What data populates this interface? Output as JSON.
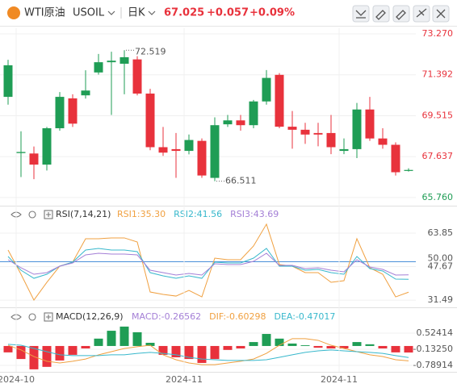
{
  "header": {
    "symbol": "WTI原油",
    "code": "USOIL",
    "period": "日K",
    "price": "67.025",
    "change": "+0.057",
    "change_pct": "+0.09%"
  },
  "chart_data": [
    {
      "type": "candlestick",
      "up_color": "#1f9d55",
      "down_color": "#e8323c",
      "open": [
        70.38,
        67.8,
        67.78,
        67.27,
        68.94,
        70.31,
        70.45,
        71.5,
        71.97,
        71.9,
        72.1,
        70.53,
        68.07,
        67.98,
        67.9,
        68.36,
        66.66,
        69.12,
        69.3,
        69.08,
        70.17,
        71.39,
        69.01,
        68.87,
        68.72,
        68.72,
        67.9,
        67.98,
        69.8,
        68.47,
        68.18,
        66.98
      ],
      "high": [
        72.08,
        68.8,
        68.1,
        69.0,
        70.6,
        70.5,
        71.6,
        72.35,
        72.45,
        72.519,
        72.25,
        70.75,
        69.0,
        68.72,
        68.65,
        68.47,
        69.44,
        69.55,
        69.55,
        70.24,
        71.61,
        71.47,
        69.73,
        69.19,
        69.19,
        69.55,
        68.47,
        70.1,
        70.38,
        68.94,
        68.29,
        67.1
      ],
      "low": [
        70.02,
        66.7,
        66.6,
        67.0,
        68.83,
        69.0,
        70.3,
        71.4,
        69.55,
        70.5,
        70.45,
        67.93,
        67.67,
        66.66,
        67.74,
        66.66,
        66.511,
        69.0,
        68.83,
        68.94,
        70.02,
        68.94,
        68.0,
        68.22,
        68.11,
        67.75,
        67.75,
        67.57,
        68.36,
        68.0,
        66.77,
        66.95
      ],
      "close": [
        71.83,
        67.85,
        67.27,
        68.94,
        70.38,
        69.15,
        70.67,
        71.97,
        72.04,
        72.2,
        70.53,
        68.07,
        67.82,
        67.9,
        68.4,
        66.77,
        69.08,
        69.3,
        69.08,
        70.17,
        71.25,
        69.01,
        68.87,
        68.65,
        68.65,
        68.07,
        67.98,
        69.8,
        68.47,
        68.18,
        66.92,
        67.025
      ],
      "annotations": {
        "high": "72.519",
        "low": "66.511"
      },
      "ylim": [
        65.57,
        73.53
      ],
      "yticks": [
        {
          "value": 73.27,
          "label": "73.270"
        },
        {
          "value": 71.392,
          "label": "71.392"
        },
        {
          "value": 69.515,
          "label": "69.515"
        },
        {
          "value": 67.637,
          "label": "67.637"
        },
        {
          "value": 65.76,
          "label": "65.760"
        }
      ],
      "ytick_colors": [
        "#e8323c",
        "#e8323c",
        "#e8323c",
        "#e8323c",
        "#1f9d55"
      ],
      "grid": true
    },
    {
      "type": "line",
      "title": "RSI(7,14,21)",
      "series": [
        {
          "name": "RSI1:35.30",
          "color": "#f0a040",
          "values": [
            55.66,
            43.97,
            31.49,
            40.07,
            47.87,
            49.81,
            61.12,
            61.12,
            61.51,
            61.51,
            59.56,
            35.39,
            34.22,
            33.44,
            36.17,
            33.05,
            51.76,
            50.98,
            50.98,
            57.61,
            68.14,
            48.65,
            47.87,
            44.75,
            44.75,
            40.07,
            40.85,
            61.12,
            47.09,
            43.97,
            33.05,
            35.3
          ]
        },
        {
          "name": "RSI2:41.56",
          "color": "#38b8cc",
          "values": [
            52.54,
            45.92,
            42.02,
            43.97,
            47.87,
            49.81,
            55.66,
            56.44,
            55.66,
            55.66,
            54.88,
            44.75,
            43.19,
            42.02,
            43.19,
            42.02,
            49.81,
            49.42,
            49.42,
            51.76,
            56.44,
            47.87,
            47.87,
            45.92,
            46.31,
            44.75,
            43.97,
            52.54,
            46.7,
            45.53,
            41.63,
            41.56
          ]
        },
        {
          "name": "RSI3:43.69",
          "color": "#a47fd6",
          "values": [
            50.98,
            47.09,
            43.97,
            44.75,
            47.87,
            49.42,
            53.32,
            54.1,
            53.71,
            53.71,
            53.32,
            45.92,
            44.75,
            43.58,
            44.36,
            43.58,
            49.03,
            48.65,
            48.65,
            50.2,
            54.1,
            48.26,
            48.26,
            46.7,
            47.09,
            45.92,
            45.14,
            50.98,
            47.48,
            46.31,
            43.58,
            43.69
          ]
        }
      ],
      "ref_lines": [
        {
          "value": 50,
          "label": "50.00"
        }
      ],
      "ref_color": "#4a90d9",
      "ylim": [
        28.4,
        75.9
      ],
      "yticks": [
        63.85,
        47.67,
        31.49
      ],
      "grid": true
    },
    {
      "type": "bar",
      "title": "MACD(12,26,9)",
      "up_color": "#1f9d55",
      "down_color": "#e8323c",
      "categories": [
        "2024-10",
        null,
        null,
        null,
        null,
        null,
        null,
        null,
        null,
        null,
        null,
        null,
        null,
        "2024-11",
        null,
        null,
        null,
        null,
        null,
        null,
        null,
        null,
        null,
        null,
        null,
        "2024-11",
        null,
        null,
        null,
        null,
        null,
        null
      ],
      "legend": [
        {
          "text": "MACD:-0.26562",
          "color": "#a47fd6"
        },
        {
          "text": "DIF:-0.60298",
          "color": "#f0a040"
        },
        {
          "text": "DEA:-0.47017",
          "color": "#38b8cc"
        }
      ],
      "values": [
        -0.26,
        -0.53,
        -0.95,
        -0.85,
        -0.59,
        -0.36,
        -0.1,
        0.3,
        0.62,
        0.79,
        0.56,
        0.13,
        -0.36,
        -0.46,
        -0.53,
        -0.69,
        -0.53,
        -0.16,
        -0.1,
        0.16,
        0.49,
        0.3,
        0.1,
        0.03,
        -0.07,
        -0.1,
        -0.1,
        0.16,
        0.07,
        -0.1,
        -0.26,
        -0.26562
      ],
      "series": [
        {
          "color": "#f0a040",
          "values": [
            0.03,
            -0.16,
            -0.43,
            -0.62,
            -0.69,
            -0.62,
            -0.53,
            -0.36,
            -0.23,
            -0.1,
            -0.03,
            0.03,
            -0.36,
            -0.56,
            -0.69,
            -0.76,
            -0.76,
            -0.69,
            -0.62,
            -0.53,
            -0.3,
            0.03,
            0.3,
            0.3,
            0.23,
            0.03,
            -0.1,
            -0.23,
            -0.36,
            -0.43,
            -0.56,
            -0.60298
          ]
        },
        {
          "color": "#38b8cc",
          "values": [
            0.07,
            0.03,
            -0.1,
            -0.23,
            -0.36,
            -0.39,
            -0.39,
            -0.39,
            -0.36,
            -0.36,
            -0.3,
            -0.26,
            -0.3,
            -0.36,
            -0.46,
            -0.53,
            -0.56,
            -0.59,
            -0.59,
            -0.59,
            -0.56,
            -0.46,
            -0.36,
            -0.26,
            -0.2,
            -0.16,
            -0.2,
            -0.23,
            -0.26,
            -0.3,
            -0.39,
            -0.47017
          ]
        }
      ],
      "ylim": [
        -1.085,
        1.509
      ],
      "yticks": [
        0.52414,
        {
          "value": -0.1325,
          "label": "-0.13250"
        },
        -0.78914
      ],
      "grid": true
    }
  ]
}
